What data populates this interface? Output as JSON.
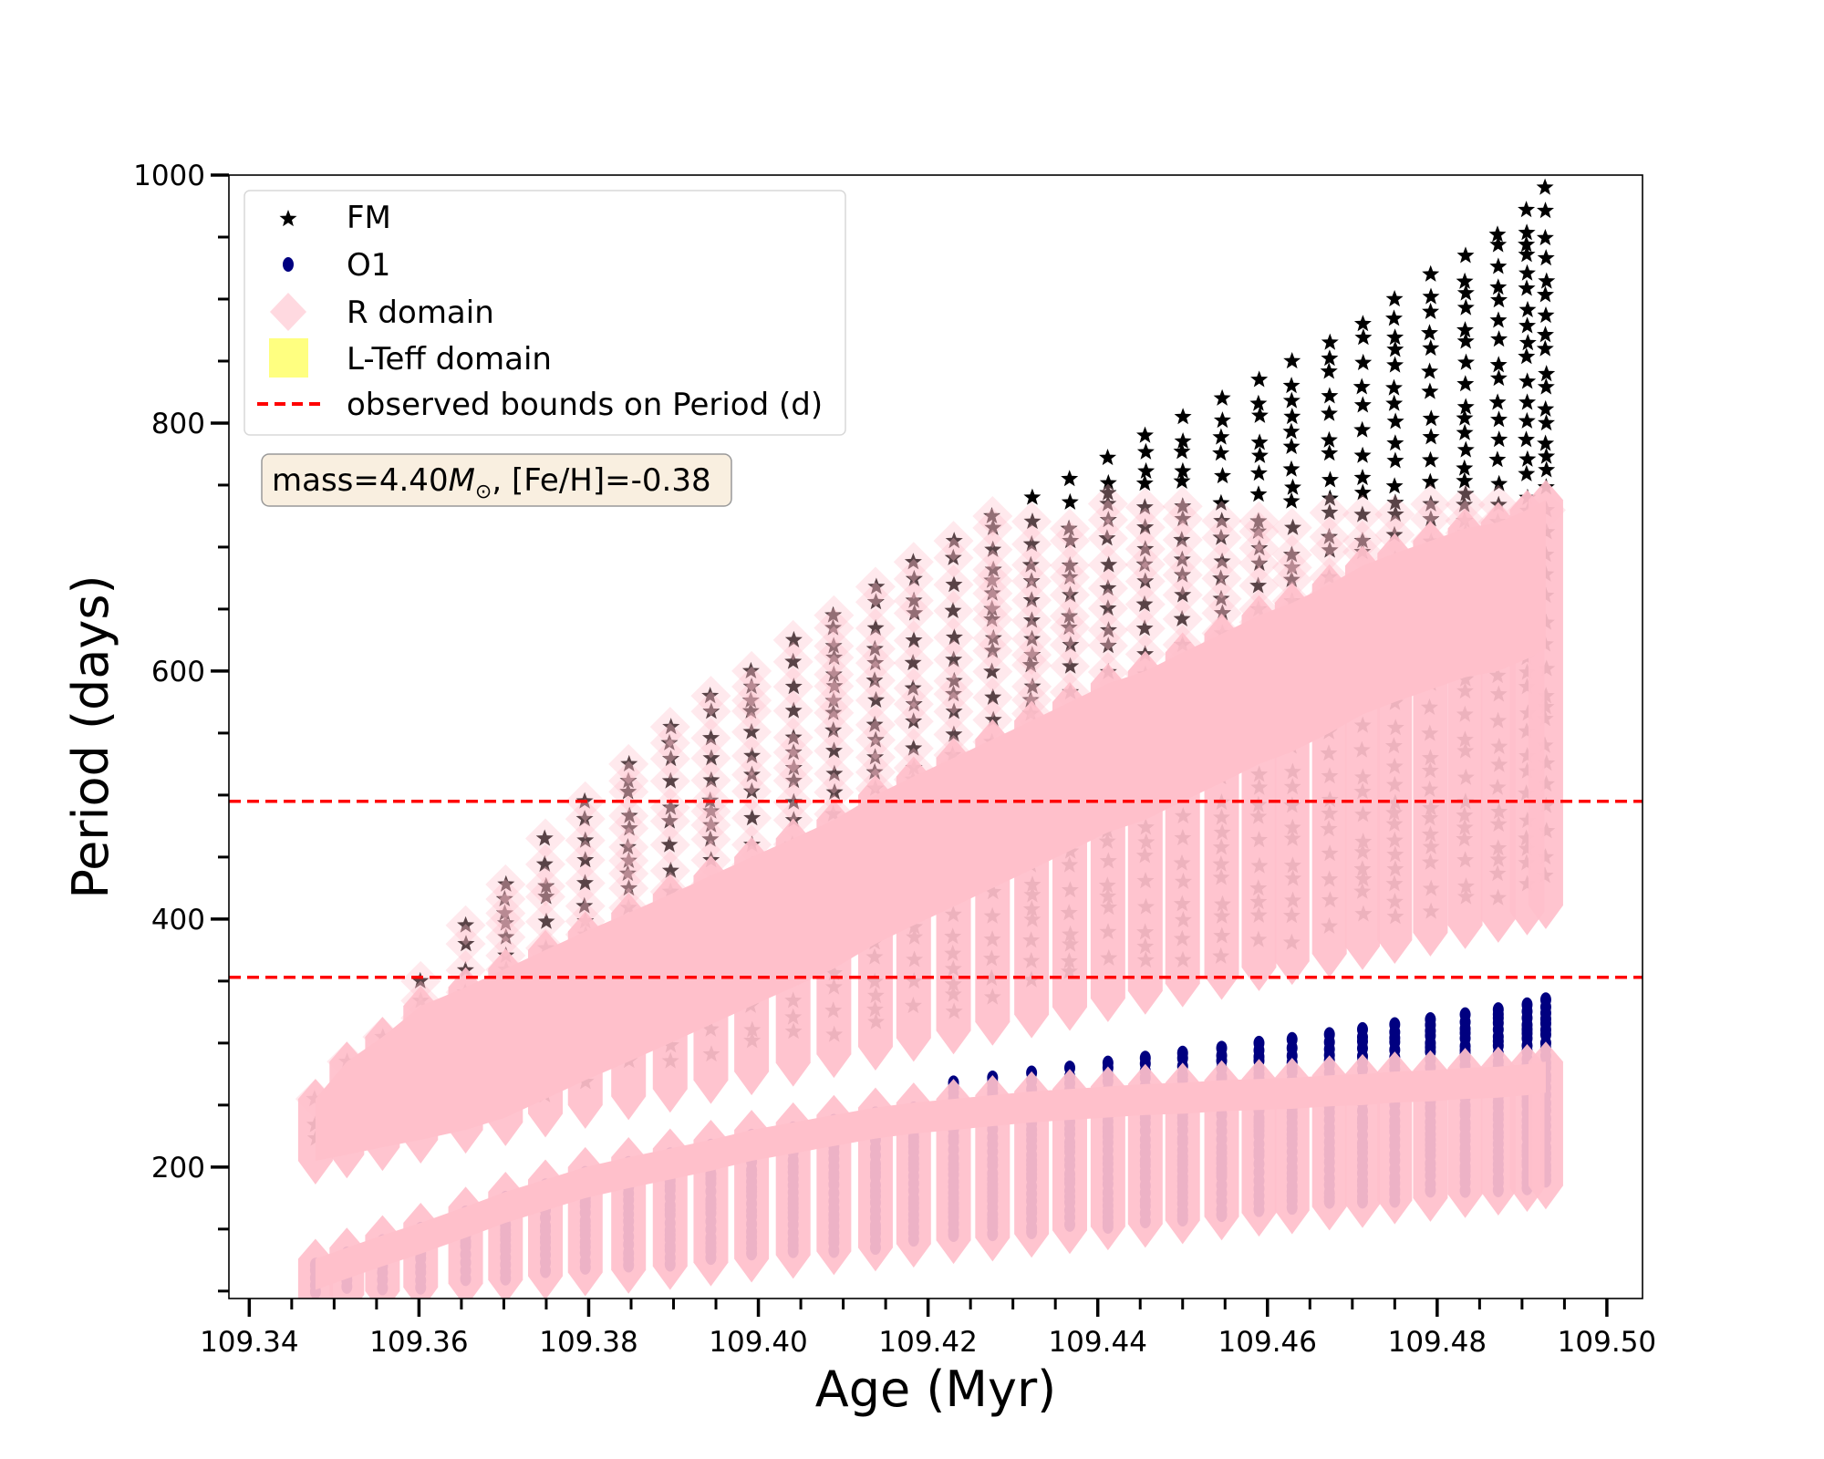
{
  "chart_data": {
    "type": "scatter",
    "xlabel": "Age (Myr)",
    "ylabel": "Period (days)",
    "xlim": [
      109.3376,
      109.5042
    ],
    "ylim": [
      94,
      1000
    ],
    "xticks": [
      "109.34",
      "109.36",
      "109.38",
      "109.40",
      "109.42",
      "109.44",
      "109.46",
      "109.48",
      "109.50"
    ],
    "yticks": [
      "200",
      "400",
      "600",
      "800",
      "1000"
    ],
    "legend": {
      "placement": "top-left",
      "entries": [
        "FM",
        "O1",
        "R domain",
        "L-Teff domain",
        "observed bounds on Period (d)"
      ]
    },
    "annotation": {
      "prefix": "mass=4.40",
      "symbol": "M",
      "subscript": "⊙",
      "suffix": ", [Fe/H]=-0.38"
    },
    "observed_bounds": [
      353,
      495
    ],
    "colors": {
      "fm": "#000000",
      "o1": "#000080",
      "r_domain": "#ffc0cb",
      "lteff_domain": "#ffff80",
      "bounds": "#ff0000"
    },
    "columns": {
      "age": [
        109.3478,
        109.3515,
        109.3557,
        109.3602,
        109.3655,
        109.3702,
        109.3749,
        109.3796,
        109.3847,
        109.3896,
        109.3944,
        109.3992,
        109.4041,
        109.4089,
        109.4138,
        109.4183,
        109.423,
        109.4276,
        109.4322,
        109.4367,
        109.4412,
        109.4456,
        109.45,
        109.4546,
        109.459,
        109.4629,
        109.4673,
        109.4712,
        109.475,
        109.4792,
        109.4833,
        109.4872,
        109.4906,
        109.4928
      ],
      "fm_max": [
        255,
        285,
        305,
        350,
        395,
        428,
        465,
        495,
        525,
        555,
        580,
        600,
        625,
        645,
        668,
        688,
        705,
        725,
        740,
        755,
        772,
        790,
        805,
        820,
        835,
        850,
        865,
        880,
        900,
        920,
        935,
        952,
        972,
        990
      ],
      "r_upper_top": [
        255,
        285,
        305,
        330,
        345,
        360,
        375,
        390,
        405,
        420,
        435,
        450,
        465,
        480,
        500,
        515,
        530,
        545,
        560,
        575,
        590,
        600,
        615,
        630,
        645,
        655,
        670,
        685,
        695,
        705,
        715,
        720,
        730,
        738
      ],
      "r_upper_bottom": [
        205,
        210,
        216,
        222,
        230,
        236,
        243,
        250,
        257,
        263,
        270,
        277,
        284,
        291,
        297,
        304,
        310,
        317,
        323,
        329,
        336,
        342,
        348,
        354,
        361,
        366,
        372,
        378,
        383,
        389,
        395,
        400,
        406,
        411
      ],
      "r_lower_top": [
        126,
        135,
        145,
        155,
        168,
        180,
        190,
        200,
        208,
        215,
        222,
        230,
        236,
        242,
        248,
        252,
        255,
        258,
        261,
        263,
        265,
        267,
        268,
        270,
        271,
        272,
        274,
        275,
        277,
        278,
        280,
        281,
        283,
        285
      ],
      "r_lower_bottom": [
        95,
        97,
        100,
        103,
        106,
        109,
        112,
        115,
        117,
        120,
        123,
        126,
        129,
        132,
        135,
        138,
        141,
        143,
        146,
        149,
        152,
        154,
        157,
        160,
        163,
        165,
        168,
        170,
        173,
        175,
        178,
        180,
        183,
        185
      ],
      "o1_max": [
        121,
        130,
        140,
        150,
        163,
        175,
        185,
        195,
        203,
        210,
        217,
        225,
        231,
        237,
        243,
        247,
        268,
        272,
        276,
        280,
        284,
        288,
        292,
        296,
        300,
        303,
        307,
        311,
        315,
        319,
        323,
        327,
        331,
        335
      ]
    },
    "r_domain_max_period": 735
  }
}
